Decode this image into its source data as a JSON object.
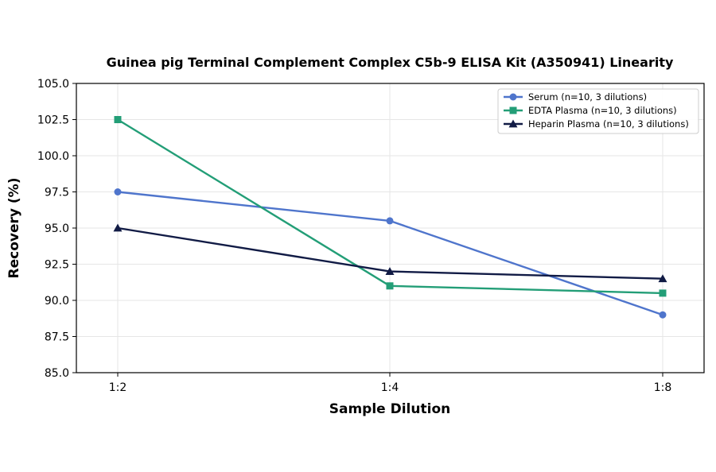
{
  "chart_data": {
    "type": "line",
    "title": "Guinea pig Terminal Complement Complex C5b-9 ELISA Kit (A350941) Linearity",
    "xlabel": "Sample Dilution",
    "ylabel": "Recovery (%)",
    "categories": [
      "1:2",
      "1:4",
      "1:8"
    ],
    "ylim": [
      85.0,
      105.0
    ],
    "yticks": [
      "85.0",
      "87.5",
      "90.0",
      "92.5",
      "95.0",
      "97.5",
      "100.0",
      "102.5",
      "105.0"
    ],
    "grid": true,
    "legend_position": "top-right",
    "series": [
      {
        "name": "Serum (n=10, 3 dilutions)",
        "values": [
          97.5,
          95.5,
          89.0
        ],
        "color": "#4F75CC",
        "marker": "circle"
      },
      {
        "name": "EDTA Plasma (n=10, 3 dilutions)",
        "values": [
          102.5,
          91.0,
          90.5
        ],
        "color": "#239E77",
        "marker": "square"
      },
      {
        "name": "Heparin Plasma (n=10, 3 dilutions)",
        "values": [
          95.0,
          92.0,
          91.5
        ],
        "color": "#111B45",
        "marker": "triangle"
      }
    ]
  }
}
